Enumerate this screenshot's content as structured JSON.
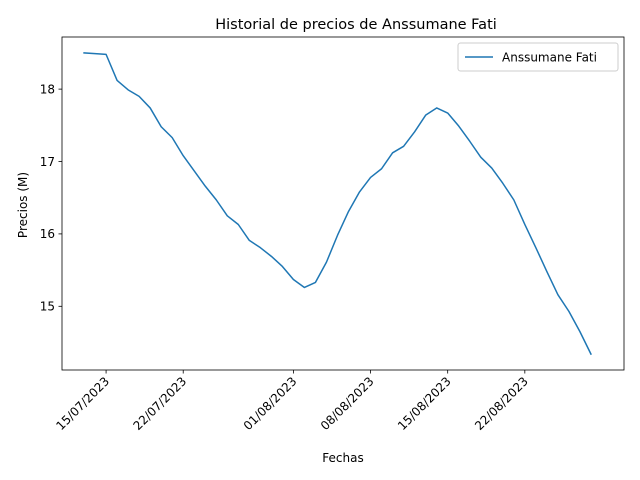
{
  "chart_data": {
    "type": "line",
    "title": "Historial de precios de Anssumane Fati",
    "xlabel": "Fechas",
    "ylabel": "Precios (M)",
    "xlim": [
      "2023-07-11",
      "2023-08-31"
    ],
    "ylim": [
      14.12,
      18.72
    ],
    "xticks": [
      {
        "date": "2023-07-15",
        "label": "15/07/2023"
      },
      {
        "date": "2023-07-22",
        "label": "22/07/2023"
      },
      {
        "date": "2023-08-01",
        "label": "01/08/2023"
      },
      {
        "date": "2023-08-08",
        "label": "08/08/2023"
      },
      {
        "date": "2023-08-15",
        "label": "15/08/2023"
      },
      {
        "date": "2023-08-22",
        "label": "22/08/2023"
      }
    ],
    "yticks": [
      15,
      16,
      17,
      18
    ],
    "legend": {
      "position": "top-right"
    },
    "grid": false,
    "series": [
      {
        "name": "Anssumane Fati",
        "color": "#1f77b4",
        "points": [
          [
            "2023-07-13",
            18.5
          ],
          [
            "2023-07-14",
            18.49
          ],
          [
            "2023-07-15",
            18.48
          ],
          [
            "2023-07-16",
            18.12
          ],
          [
            "2023-07-17",
            17.99
          ],
          [
            "2023-07-18",
            17.9
          ],
          [
            "2023-07-19",
            17.74
          ],
          [
            "2023-07-20",
            17.48
          ],
          [
            "2023-07-21",
            17.33
          ],
          [
            "2023-07-22",
            17.08
          ],
          [
            "2023-07-23",
            16.87
          ],
          [
            "2023-07-24",
            16.66
          ],
          [
            "2023-07-25",
            16.47
          ],
          [
            "2023-07-26",
            16.25
          ],
          [
            "2023-07-27",
            16.13
          ],
          [
            "2023-07-28",
            15.91
          ],
          [
            "2023-07-29",
            15.81
          ],
          [
            "2023-07-30",
            15.69
          ],
          [
            "2023-07-31",
            15.55
          ],
          [
            "2023-08-01",
            15.37
          ],
          [
            "2023-08-02",
            15.26
          ],
          [
            "2023-08-03",
            15.33
          ],
          [
            "2023-08-04",
            15.61
          ],
          [
            "2023-08-05",
            15.98
          ],
          [
            "2023-08-06",
            16.31
          ],
          [
            "2023-08-07",
            16.58
          ],
          [
            "2023-08-08",
            16.78
          ],
          [
            "2023-08-09",
            16.9
          ],
          [
            "2023-08-10",
            17.12
          ],
          [
            "2023-08-11",
            17.21
          ],
          [
            "2023-08-12",
            17.41
          ],
          [
            "2023-08-13",
            17.64
          ],
          [
            "2023-08-14",
            17.74
          ],
          [
            "2023-08-15",
            17.67
          ],
          [
            "2023-08-16",
            17.49
          ],
          [
            "2023-08-17",
            17.28
          ],
          [
            "2023-08-18",
            17.06
          ],
          [
            "2023-08-19",
            16.91
          ],
          [
            "2023-08-20",
            16.7
          ],
          [
            "2023-08-21",
            16.47
          ],
          [
            "2023-08-22",
            16.13
          ],
          [
            "2023-08-23",
            15.81
          ],
          [
            "2023-08-24",
            15.48
          ],
          [
            "2023-08-25",
            15.16
          ],
          [
            "2023-08-26",
            14.93
          ],
          [
            "2023-08-27",
            14.65
          ],
          [
            "2023-08-28",
            14.34
          ]
        ]
      }
    ]
  }
}
